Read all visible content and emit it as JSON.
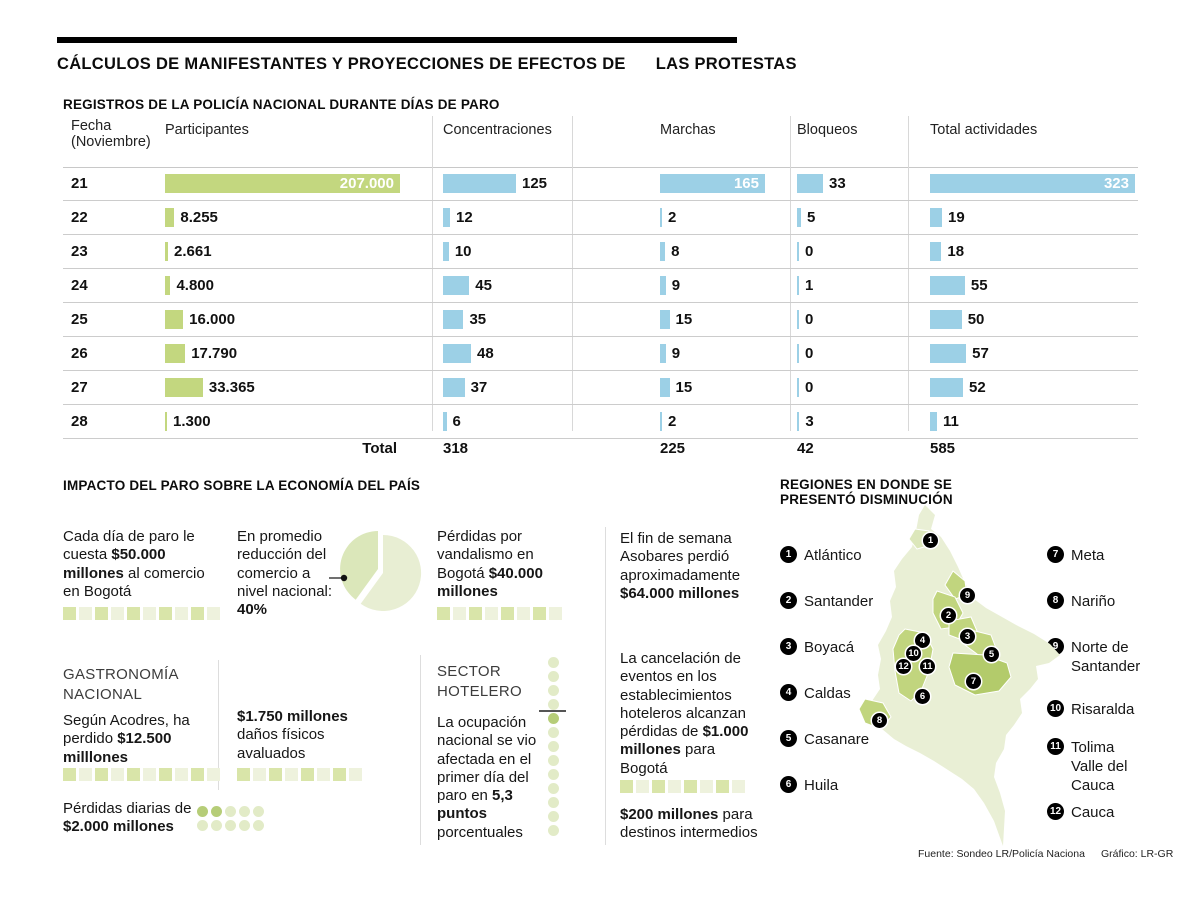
{
  "header": {
    "title_part1": "CÁLCULOS DE MANIFESTANTES Y PROYECCIONES DE EFECTOS DE",
    "title_part2": "LAS PROTESTAS"
  },
  "colors": {
    "bar_green": "#c3d77f",
    "bar_blue": "#9cd0e6",
    "map_light": "#e9efd5",
    "map_dark": "#c1d57e",
    "accent_black": "#000000"
  },
  "chart_data": [
    {
      "type": "table",
      "title": "REGISTROS DE LA POLICÍA NACIONAL DURANTE DÍAS DE PARO",
      "columns": [
        "Fecha (Noviembre)",
        "Participantes",
        "Concentraciones",
        "Marchas",
        "Bloqueos",
        "Total actividades"
      ],
      "rows": [
        {
          "fecha": "21",
          "participantes": 207000,
          "participantes_label": "207.000",
          "concentraciones": 125,
          "marchas": 165,
          "bloqueos": 33,
          "total": 323
        },
        {
          "fecha": "22",
          "participantes": 8255,
          "participantes_label": "8.255",
          "concentraciones": 12,
          "marchas": 2,
          "bloqueos": 5,
          "total": 19
        },
        {
          "fecha": "23",
          "participantes": 2661,
          "participantes_label": "2.661",
          "concentraciones": 10,
          "marchas": 8,
          "bloqueos": 0,
          "total": 18
        },
        {
          "fecha": "24",
          "participantes": 4800,
          "participantes_label": "4.800",
          "concentraciones": 45,
          "marchas": 9,
          "bloqueos": 1,
          "total": 55
        },
        {
          "fecha": "25",
          "participantes": 16000,
          "participantes_label": "16.000",
          "concentraciones": 35,
          "marchas": 15,
          "bloqueos": 0,
          "total": 50
        },
        {
          "fecha": "26",
          "participantes": 17790,
          "participantes_label": "17.790",
          "concentraciones": 48,
          "marchas": 9,
          "bloqueos": 0,
          "total": 57
        },
        {
          "fecha": "27",
          "participantes": 33365,
          "participantes_label": "33.365",
          "concentraciones": 37,
          "marchas": 15,
          "bloqueos": 0,
          "total": 52
        },
        {
          "fecha": "28",
          "participantes": 1300,
          "participantes_label": "1.300",
          "concentraciones": 6,
          "marchas": 2,
          "bloqueos": 3,
          "total": 11
        }
      ],
      "totals": {
        "label": "Total",
        "concentraciones": 318,
        "marchas": 225,
        "bloqueos": 42,
        "total": 585
      }
    },
    {
      "type": "pie",
      "title": "Reducción promedio del comercio a nivel nacional",
      "values": [
        {
          "label": "Reducción",
          "value": 40
        },
        {
          "label": "Resto",
          "value": 60
        }
      ]
    }
  ],
  "economy": {
    "title": "IMPACTO DEL PARO SOBRE LA ECONOMÍA DEL PAÍS",
    "daily_cost": {
      "segments": [
        {
          "t": "Cada día de paro le cuesta ",
          "b": false
        },
        {
          "t": "$50.000 millones",
          "b": true
        },
        {
          "t": " al comercio en Bogotá",
          "b": false
        }
      ],
      "squares": 10
    },
    "reduction": {
      "segments": [
        {
          "t": "En promedio reducción del comercio a nivel nacional: ",
          "b": false
        },
        {
          "t": "40%",
          "b": true
        }
      ],
      "pie_percent": 40
    },
    "vandalism": {
      "segments": [
        {
          "t": "Pérdidas por vandalismo en Bogotá ",
          "b": false
        },
        {
          "t": "$40.000 millones",
          "b": true
        }
      ],
      "squares": 8
    },
    "asobares": {
      "segments": [
        {
          "t": "El fin de semana Asobares perdió aproximadamente ",
          "b": false
        },
        {
          "t": "$64.000 millones",
          "b": true
        }
      ]
    },
    "gastronomy": {
      "heading": "GASTRONOMÍA NACIONAL",
      "segments": [
        {
          "t": "Según Acodres, ha perdido ",
          "b": false
        },
        {
          "t": "$12.500 milllones",
          "b": true
        }
      ],
      "squares": 10
    },
    "daily_losses": {
      "segments": [
        {
          "t": "Pérdidas diarias de ",
          "b": false
        },
        {
          "t": "$2.000 millones",
          "b": true
        }
      ],
      "dots": {
        "count": 10,
        "dark": [
          0,
          1
        ]
      }
    },
    "damages": {
      "segments": [
        {
          "t": "$1.750 millones",
          "b": true
        },
        {
          "t": " daños físicos avaluados",
          "b": false
        }
      ],
      "squares": 8
    },
    "hotels": {
      "heading": "SECTOR HOTELERO",
      "segments": [
        {
          "t": "La ocupación nacional se vio afectada en el primer día del paro en ",
          "b": false
        },
        {
          "t": "5,3 puntos",
          "b": true
        },
        {
          "t": " porcentuales",
          "b": false
        }
      ],
      "dots": {
        "count": 13,
        "dark": [
          4
        ]
      }
    },
    "cancellation": {
      "segments": [
        {
          "t": "La cancelación de eventos en los establecimientos hoteleros alcanzan pérdidas de ",
          "b": false
        },
        {
          "t": "$1.000 millones",
          "b": true
        },
        {
          "t": " para Bogotá",
          "b": false
        }
      ],
      "squares": 8
    },
    "intermediate": {
      "segments": [
        {
          "t": "$200 millones",
          "b": true
        },
        {
          "t": " para destinos intermedios",
          "b": false
        }
      ]
    }
  },
  "regions": {
    "title": "REGIONES EN DONDE SE PRESENTÓ DISMINUCIÓN",
    "items": [
      {
        "num": "1",
        "name": "Atlántico"
      },
      {
        "num": "2",
        "name": "Santander"
      },
      {
        "num": "3",
        "name": "Boyacá"
      },
      {
        "num": "4",
        "name": "Caldas"
      },
      {
        "num": "5",
        "name": "Casanare"
      },
      {
        "num": "6",
        "name": "Huila"
      },
      {
        "num": "7",
        "name": "Meta"
      },
      {
        "num": "8",
        "name": "Nariño"
      },
      {
        "num": "9",
        "name": "Norte de Santander"
      },
      {
        "num": "10",
        "name": "Risaralda"
      },
      {
        "num": "11",
        "name": "Tolima Valle del Cauca"
      },
      {
        "num": "12",
        "name": "Cauca"
      }
    ]
  },
  "credits": {
    "source": "Fuente: Sondeo LR/Policía Naciona",
    "graphic": "Gráfico: LR-GR"
  }
}
